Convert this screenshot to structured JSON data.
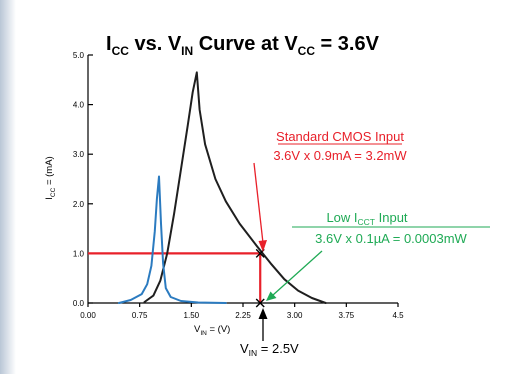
{
  "chart_data": {
    "type": "line",
    "title": {
      "p1": "I",
      "p1_sub": "CC",
      "p2": " vs. V",
      "p2_sub": "IN",
      "p3": " Curve at V",
      "p3_sub": "CC",
      "p4": " =  3.6V"
    },
    "xlabel": {
      "main": "V",
      "sub": "IN",
      "rest": " = (V)"
    },
    "ylabel": {
      "main": "I",
      "sub": "CC",
      "rest": " = (mA)"
    },
    "xlim": [
      0,
      4.5
    ],
    "ylim": [
      0,
      5.0
    ],
    "x_ticks": [
      {
        "v": 0,
        "label": "0.00"
      },
      {
        "v": 0.75,
        "label": "0.75"
      },
      {
        "v": 1.5,
        "label": "1.50"
      },
      {
        "v": 2.25,
        "label": "2.25"
      },
      {
        "v": 3.0,
        "label": "3.00"
      },
      {
        "v": 3.75,
        "label": "3.75"
      },
      {
        "v": 4.5,
        "label": "4.5"
      }
    ],
    "y_ticks": [
      {
        "v": 0,
        "label": "0.0"
      },
      {
        "v": 1,
        "label": "1.0"
      },
      {
        "v": 2,
        "label": "2.0"
      },
      {
        "v": 3,
        "label": "3.0"
      },
      {
        "v": 4,
        "label": "4.0"
      },
      {
        "v": 5,
        "label": "5.0"
      }
    ],
    "grid": false,
    "series": [
      {
        "color": "#1f1f1f",
        "points": [
          [
            0.82,
            0.02
          ],
          [
            0.95,
            0.15
          ],
          [
            1.05,
            0.45
          ],
          [
            1.15,
            1.0
          ],
          [
            1.25,
            1.8
          ],
          [
            1.35,
            2.7
          ],
          [
            1.45,
            3.6
          ],
          [
            1.52,
            4.25
          ],
          [
            1.58,
            4.65
          ],
          [
            1.62,
            3.9
          ],
          [
            1.7,
            3.2
          ],
          [
            1.85,
            2.5
          ],
          [
            2.0,
            2.05
          ],
          [
            2.2,
            1.6
          ],
          [
            2.45,
            1.15
          ],
          [
            2.65,
            0.8
          ],
          [
            2.85,
            0.48
          ],
          [
            3.05,
            0.25
          ],
          [
            3.25,
            0.1
          ],
          [
            3.45,
            0.0
          ]
        ]
      },
      {
        "color": "#2b7bc0",
        "points": [
          [
            0.45,
            0.0
          ],
          [
            0.62,
            0.06
          ],
          [
            0.78,
            0.18
          ],
          [
            0.86,
            0.38
          ],
          [
            0.92,
            0.75
          ],
          [
            0.97,
            1.45
          ],
          [
            1.0,
            2.1
          ],
          [
            1.03,
            2.55
          ],
          [
            1.06,
            1.6
          ],
          [
            1.09,
            0.8
          ],
          [
            1.13,
            0.3
          ],
          [
            1.2,
            0.12
          ],
          [
            1.35,
            0.04
          ],
          [
            1.6,
            0.01
          ],
          [
            2.0,
            0.0
          ]
        ]
      }
    ],
    "reference_lines": [
      {
        "color": "#e8202a",
        "from": [
          0,
          1.0
        ],
        "to": [
          2.5,
          1.0
        ]
      },
      {
        "color": "#e8202a",
        "from": [
          2.5,
          1.0
        ],
        "to": [
          2.5,
          0.0
        ]
      }
    ],
    "markers": [
      {
        "x": 2.5,
        "y": 1.0
      },
      {
        "x": 2.5,
        "y": 0.0
      }
    ],
    "annotations": {
      "cmos": {
        "line1": "Standard CMOS Input",
        "line2": "3.6V x 0.9mA = 3.2mW",
        "color": "#e8202a"
      },
      "lowicct": {
        "line1a": "Low I",
        "line1sub": "CCT",
        "line1b": " Input",
        "line2": "3.6V x 0.1µA = 0.0003mW",
        "color": "#1faa55"
      },
      "vin": {
        "main": "V",
        "sub": "IN",
        "rest": " = 2.5V",
        "color": "#000000"
      }
    }
  }
}
